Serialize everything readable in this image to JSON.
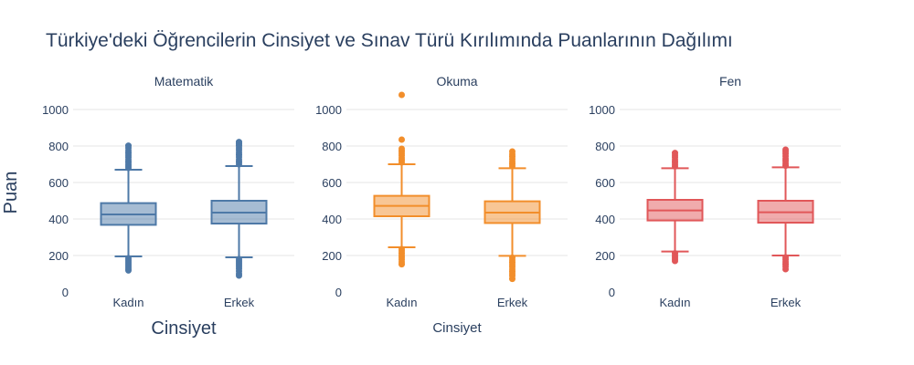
{
  "title": "Türkiye'deki Öğrencilerin Cinsiyet ve Sınav Türü Kırılımında Puanlarının Dağılımı",
  "y_axis_title": "Puan",
  "x_axis_titles": [
    "Cinsiyet",
    "Cinsiyet"
  ],
  "colors": {
    "Matematik": "#4e79a7",
    "Okuma": "#f28e2b",
    "Fen": "#e15759",
    "text": "#2a3f5f",
    "grid": "#e6e6e6"
  },
  "chart_data": [
    {
      "type": "box",
      "title": "Matematik",
      "ylim": [
        0,
        1000
      ],
      "yticks": [
        0,
        200,
        400,
        600,
        800,
        1000
      ],
      "categories": [
        "Kadın",
        "Erkek"
      ],
      "boxes": [
        {
          "category": "Kadın",
          "lower_fence": 195,
          "q1": 368,
          "median": 425,
          "q3": 487,
          "upper_fence": 670,
          "outliers_low": [
            185,
            175,
            165,
            155,
            145,
            135,
            125,
            118
          ],
          "outliers_high": [
            680,
            690,
            700,
            712,
            725,
            738,
            750,
            762,
            775,
            790,
            802
          ]
        },
        {
          "category": "Erkek",
          "lower_fence": 190,
          "q1": 375,
          "median": 435,
          "q3": 500,
          "upper_fence": 690,
          "outliers_low": [
            180,
            170,
            160,
            150,
            140,
            128,
            115,
            100,
            90
          ],
          "outliers_high": [
            700,
            712,
            725,
            740,
            752,
            765,
            778,
            790,
            802,
            812,
            822
          ]
        }
      ]
    },
    {
      "type": "box",
      "title": "Okuma",
      "ylim": [
        0,
        1000
      ],
      "yticks": [
        0,
        200,
        400,
        600,
        800,
        1000
      ],
      "categories": [
        "Kadın",
        "Erkek"
      ],
      "boxes": [
        {
          "category": "Kadın",
          "lower_fence": 245,
          "q1": 415,
          "median": 472,
          "q3": 527,
          "upper_fence": 700,
          "outliers_low": [
            235,
            225,
            212,
            200,
            190,
            178,
            165,
            152
          ],
          "outliers_high": [
            710,
            722,
            735,
            748,
            760,
            772,
            785,
            835,
            1080
          ]
        },
        {
          "category": "Erkek",
          "lower_fence": 198,
          "q1": 378,
          "median": 435,
          "q3": 497,
          "upper_fence": 678,
          "outliers_low": [
            188,
            175,
            162,
            150,
            138,
            125,
            112,
            100,
            88,
            72
          ],
          "outliers_high": [
            690,
            702,
            715,
            728,
            742,
            755,
            770
          ]
        }
      ]
    },
    {
      "type": "box",
      "title": "Fen",
      "ylim": [
        0,
        1000
      ],
      "yticks": [
        0,
        200,
        400,
        600,
        800,
        1000
      ],
      "categories": [
        "Kadın",
        "Erkek"
      ],
      "boxes": [
        {
          "category": "Kadın",
          "lower_fence": 222,
          "q1": 392,
          "median": 447,
          "q3": 505,
          "upper_fence": 678,
          "outliers_low": [
            212,
            200,
            190,
            180,
            170
          ],
          "outliers_high": [
            688,
            700,
            712,
            725,
            738,
            750,
            762
          ]
        },
        {
          "category": "Erkek",
          "lower_fence": 200,
          "q1": 380,
          "median": 437,
          "q3": 500,
          "upper_fence": 683,
          "outliers_low": [
            190,
            178,
            165,
            152,
            140,
            125
          ],
          "outliers_high": [
            692,
            705,
            718,
            730,
            745,
            758,
            770,
            780
          ]
        }
      ]
    }
  ]
}
